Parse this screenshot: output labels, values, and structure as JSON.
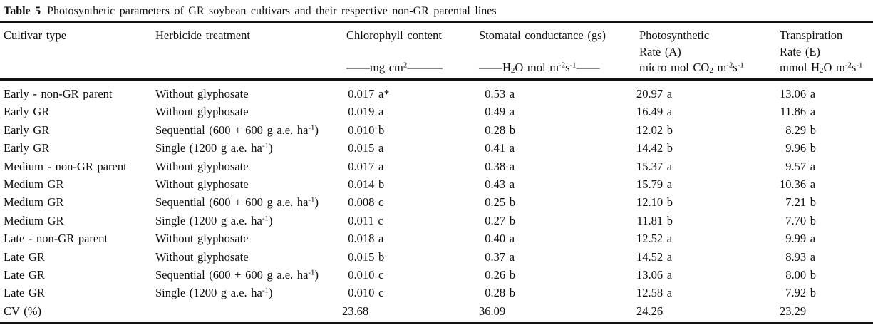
{
  "caption": {
    "table_number": "Table 5",
    "text": "Photosynthetic parameters of GR soybean cultivars and their respective non-GR parental lines"
  },
  "table": {
    "columns": [
      {
        "label": "Cultivar type",
        "label2": "",
        "unit": ""
      },
      {
        "label": "Herbicide treatment",
        "label2": "",
        "unit": ""
      },
      {
        "label": "Chlorophyll content",
        "label2": "",
        "unit": "——mg cm^2^———"
      },
      {
        "label": "Stomatal conductance (gs)",
        "label2": "",
        "unit": "——H~2~O mol m^-2^s^-1^——"
      },
      {
        "label": "Photosynthetic",
        "label2": "Rate (A)",
        "unit": "micro mol CO~2~ m^-2^s^-1^"
      },
      {
        "label": "Transpiration",
        "label2": "Rate (E)",
        "unit": "mmol H~2~O m^-2^s^-1^"
      }
    ],
    "rows": [
      {
        "cultivar": "Early - non-GR parent",
        "treatment": "Without glyphosate",
        "chlorophyll": "0.017 a*",
        "stomatal": "0.53 a",
        "photosynthetic": "20.97 a",
        "transpiration": "13.06 a"
      },
      {
        "cultivar": "Early GR",
        "treatment": "Without glyphosate",
        "chlorophyll": "0.019 a",
        "stomatal": "0.49 a",
        "photosynthetic": "16.49 a",
        "transpiration": "11.86 a"
      },
      {
        "cultivar": "Early GR",
        "treatment": "Sequential (600 + 600 g a.e. ha^-1^)",
        "chlorophyll": "0.010 b",
        "stomatal": "0.28 b",
        "photosynthetic": "12.02 b",
        "transpiration": "8.29 b"
      },
      {
        "cultivar": "Early GR",
        "treatment": "Single (1200 g a.e. ha^-1^)",
        "chlorophyll": "0.015 a",
        "stomatal": "0.41 a",
        "photosynthetic": "14.42 b",
        "transpiration": "9.96 b"
      },
      {
        "cultivar": "Medium - non-GR parent",
        "treatment": "Without glyphosate",
        "chlorophyll": "0.017 a",
        "stomatal": "0.38 a",
        "photosynthetic": "15.37 a",
        "transpiration": "9.57 a"
      },
      {
        "cultivar": "Medium GR",
        "treatment": "Without glyphosate",
        "chlorophyll": "0.014 b",
        "stomatal": "0.43 a",
        "photosynthetic": "15.79 a",
        "transpiration": "10.36 a"
      },
      {
        "cultivar": "Medium GR",
        "treatment": "Sequential (600 + 600 g a.e. ha^-1^)",
        "chlorophyll": "0.008 c",
        "stomatal": "0.25 b",
        "photosynthetic": "12.10 b",
        "transpiration": "7.21 b"
      },
      {
        "cultivar": "Medium GR",
        "treatment": "Single (1200 g a.e. ha^-1^)",
        "chlorophyll": "0.011 c",
        "stomatal": "0.27 b",
        "photosynthetic": "11.81 b",
        "transpiration": "7.70 b"
      },
      {
        "cultivar": "Late - non-GR parent",
        "treatment": "Without glyphosate",
        "chlorophyll": "0.018 a",
        "stomatal": "0.40 a",
        "photosynthetic": "12.52 a",
        "transpiration": "9.99 a"
      },
      {
        "cultivar": "Late GR",
        "treatment": "Without glyphosate",
        "chlorophyll": "0.015 b",
        "stomatal": "0.37 a",
        "photosynthetic": "14.52 a",
        "transpiration": "8.93 a"
      },
      {
        "cultivar": "Late GR",
        "treatment": "Sequential (600 + 600 g a.e. ha^-1^)",
        "chlorophyll": "0.010 c",
        "stomatal": "0.26 b",
        "photosynthetic": "13.06 a",
        "transpiration": "8.00 b"
      },
      {
        "cultivar": "Late GR",
        "treatment": "Single (1200 g a.e. ha^-1^)",
        "chlorophyll": "0.010 c",
        "stomatal": "0.28 b",
        "photosynthetic": "12.58 a",
        "transpiration": "7.92 b"
      },
      {
        "cultivar": "CV (%)",
        "treatment": "",
        "chlorophyll": "23.68",
        "stomatal": "36.09",
        "photosynthetic": "24.26",
        "transpiration": "23.29"
      }
    ]
  }
}
